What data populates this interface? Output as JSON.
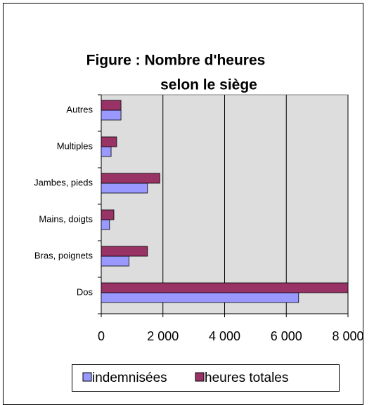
{
  "chart_data": {
    "type": "bar",
    "orientation": "horizontal",
    "title": [
      "Figure : Nombre d'heures",
      "selon le siège"
    ],
    "categories": [
      "Dos",
      "Bras, poignets",
      "Mains, doigts",
      "Jambes, pieds",
      "Multiples",
      "Autres"
    ],
    "series": [
      {
        "name": "indemnisées",
        "color": "#9999ff",
        "values": [
          6400,
          900,
          270,
          1500,
          320,
          640
        ]
      },
      {
        "name": "heures totales",
        "color": "#993366",
        "values": [
          8000,
          1500,
          410,
          1900,
          500,
          640
        ]
      }
    ],
    "xlim": [
      0,
      8000
    ],
    "xticks": [
      0,
      {
        "value": 2000,
        "label": "2 000"
      },
      {
        "value": 4000,
        "label": "4 000"
      },
      {
        "value": 6000,
        "label": "6 000"
      },
      {
        "value": 8000,
        "label": "8 000"
      }
    ],
    "grid": true,
    "legend": "bottom"
  }
}
